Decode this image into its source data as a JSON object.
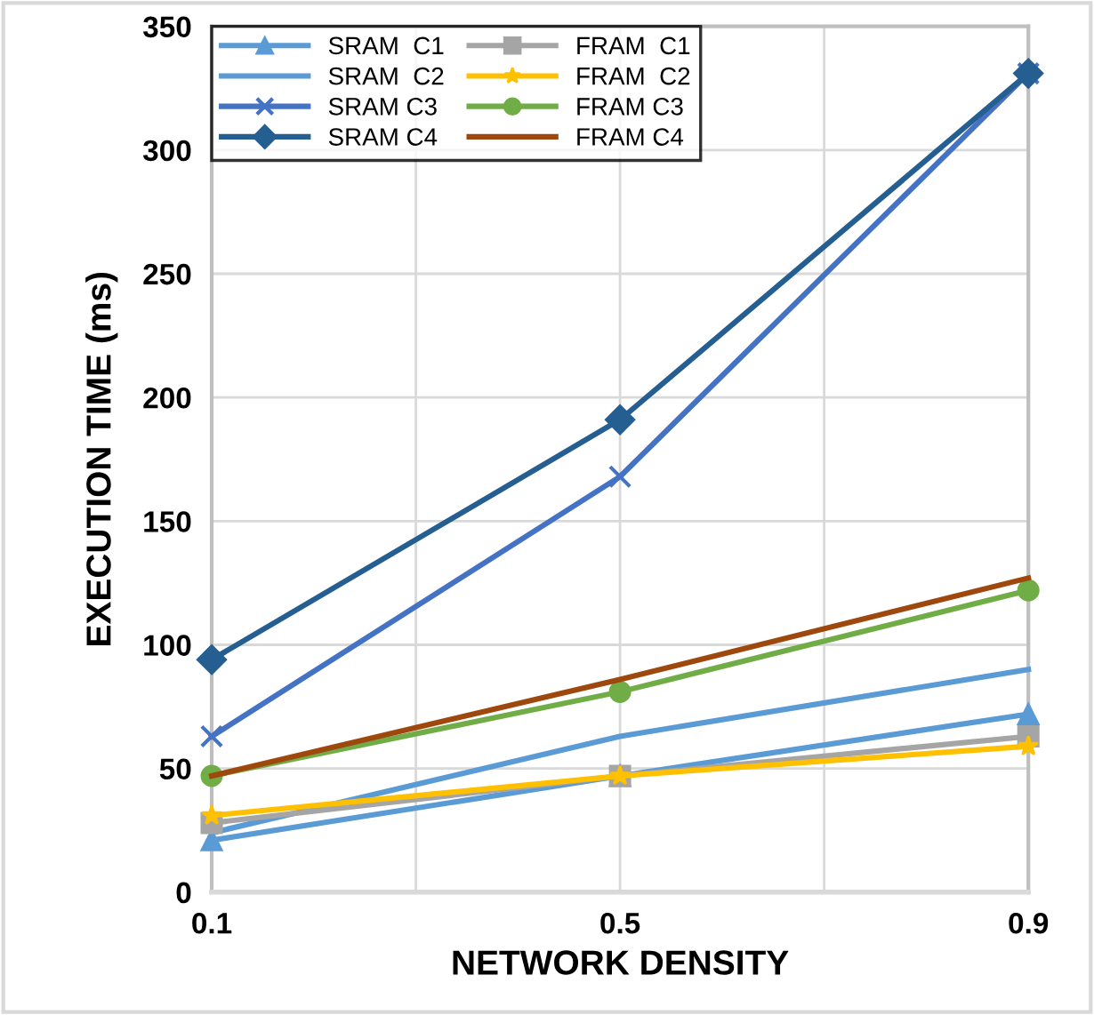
{
  "chart_data": {
    "type": "line",
    "xlabel": "NETWORK DENSITY",
    "ylabel": "EXECUTION TIME (ms)",
    "x": [
      0.1,
      0.5,
      0.9
    ],
    "xlim": [
      0.1,
      0.9
    ],
    "xticks": [
      0.1,
      {
        "value": 0.3,
        "label": null
      },
      0.5,
      {
        "value": 0.7,
        "label": null
      },
      0.9
    ],
    "ylim": [
      0,
      350
    ],
    "yticks": [
      0,
      50,
      100,
      150,
      200,
      250,
      300,
      350
    ],
    "grid": true,
    "legend": "top left",
    "series": [
      {
        "name": "SRAM  C1",
        "color": "#5b9bd5",
        "marker": "triangle",
        "values": [
          21,
          47,
          72
        ]
      },
      {
        "name": "SRAM  C2",
        "color": "#5b9bd5",
        "marker": "none",
        "values": [
          24,
          63,
          90
        ]
      },
      {
        "name": "SRAM C3",
        "color": "#4472c4",
        "marker": "cross",
        "values": [
          63,
          168,
          331
        ]
      },
      {
        "name": "SRAM C4",
        "color": "#255e91",
        "marker": "diamond",
        "values": [
          94,
          191,
          331
        ]
      },
      {
        "name": "FRAM  C1",
        "color": "#a5a5a5",
        "marker": "square",
        "values": [
          28,
          47,
          63
        ]
      },
      {
        "name": "FRAM  C2",
        "color": "#ffc000",
        "marker": "star",
        "values": [
          31,
          47,
          59
        ]
      },
      {
        "name": "FRAM C3",
        "color": "#70ad47",
        "marker": "circle",
        "values": [
          47,
          81,
          122
        ]
      },
      {
        "name": "FRAM C4",
        "color": "#9e480e",
        "marker": "none",
        "values": [
          47,
          86,
          127
        ]
      }
    ]
  }
}
